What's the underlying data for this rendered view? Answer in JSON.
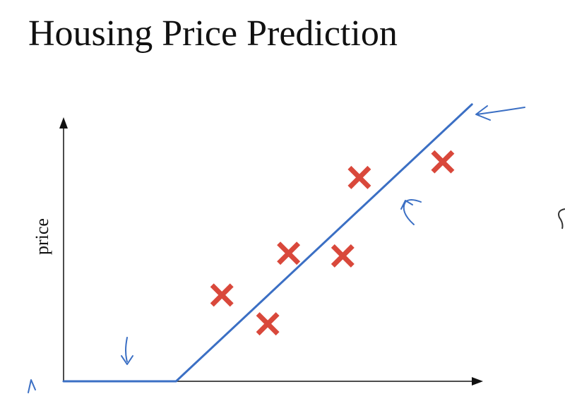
{
  "chart_data": {
    "type": "scatter",
    "title": "Housing Price Prediction",
    "y_label": "price",
    "x": [
      38,
      49,
      54,
      67,
      71,
      91
    ],
    "values": [
      33,
      22,
      49,
      48,
      78,
      84
    ],
    "color": "#d9483b",
    "fit": {
      "x": [
        0,
        27,
        98
      ],
      "values": [
        0,
        0,
        106
      ],
      "color": "#3b6fc4"
    },
    "xlim": [
      0,
      100
    ],
    "ylim": [
      0,
      110
    ]
  }
}
